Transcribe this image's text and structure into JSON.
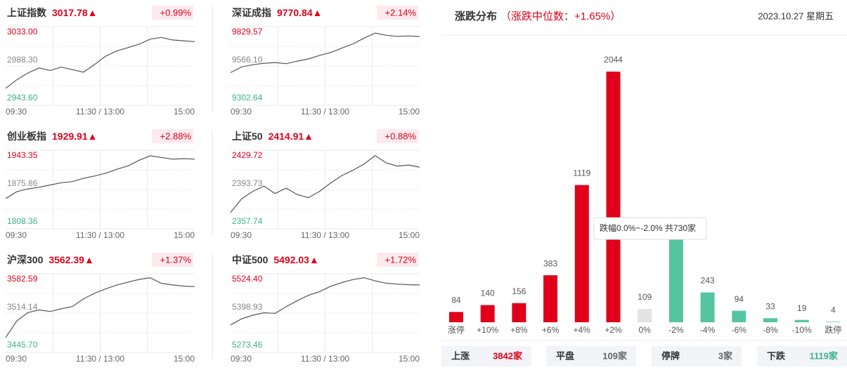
{
  "time_labels": [
    "09:30",
    "11:30 / 13:00",
    "15:00"
  ],
  "indices": [
    {
      "name": "上证指数",
      "price": "3017.78▲",
      "change": "+0.99%",
      "ylim": [
        2943.6,
        3033
      ],
      "yticks": [
        {
          "value": 2943.6,
          "label": "2943.60"
        },
        {
          "value": 2988.3,
          "label": "2988.30"
        },
        {
          "value": 3033,
          "label": "3033.00"
        }
      ],
      "values": [
        2962,
        2972,
        2980,
        2986,
        2983,
        2987,
        2984,
        2981,
        2990,
        3000,
        3006,
        3010,
        3014,
        3020,
        3022,
        3019,
        3018,
        3017
      ]
    },
    {
      "name": "深证成指",
      "price": "9770.84▲",
      "change": "+2.14%",
      "ylim": [
        9302.64,
        9829.57
      ],
      "yticks": [
        {
          "value": 9302.64,
          "label": "9302.64"
        },
        {
          "value": 9566.1,
          "label": "9566.10"
        },
        {
          "value": 9829.57,
          "label": "9829.57"
        }
      ],
      "values": [
        9520,
        9560,
        9575,
        9585,
        9590,
        9582,
        9600,
        9615,
        9640,
        9660,
        9690,
        9720,
        9760,
        9795,
        9780,
        9772,
        9775,
        9771
      ]
    },
    {
      "name": "创业板指",
      "price": "1929.91▲",
      "change": "+2.88%",
      "ylim": [
        1808.36,
        1943.35
      ],
      "yticks": [
        {
          "value": 1808.36,
          "label": "1808.36"
        },
        {
          "value": 1875.86,
          "label": "1875.86"
        },
        {
          "value": 1943.35,
          "label": "1943.35"
        }
      ],
      "values": [
        1860,
        1872,
        1877,
        1880,
        1884,
        1888,
        1890,
        1896,
        1900,
        1905,
        1912,
        1918,
        1928,
        1936,
        1933,
        1930,
        1931,
        1930
      ]
    },
    {
      "name": "上证50",
      "price": "2414.91▲",
      "change": "+0.88%",
      "ylim": [
        2357.74,
        2429.72
      ],
      "yticks": [
        {
          "value": 2357.74,
          "label": "2357.74"
        },
        {
          "value": 2393.73,
          "label": "2393.73"
        },
        {
          "value": 2429.72,
          "label": "2429.72"
        }
      ],
      "values": [
        2372,
        2385,
        2392,
        2397,
        2390,
        2395,
        2389,
        2386,
        2392,
        2400,
        2407,
        2412,
        2418,
        2426,
        2419,
        2416,
        2417,
        2415
      ]
    },
    {
      "name": "沪深300",
      "price": "3562.39▲",
      "change": "+1.37%",
      "ylim": [
        3445.7,
        3582.59
      ],
      "yticks": [
        {
          "value": 3445.7,
          "label": "3445.70"
        },
        {
          "value": 3514.14,
          "label": "3514.14"
        },
        {
          "value": 3582.59,
          "label": "3582.59"
        }
      ],
      "values": [
        3470,
        3500,
        3515,
        3520,
        3517,
        3522,
        3526,
        3540,
        3550,
        3558,
        3565,
        3570,
        3575,
        3578,
        3568,
        3565,
        3563,
        3562
      ]
    },
    {
      "name": "中证500",
      "price": "5492.03▲",
      "change": "+1.72%",
      "ylim": [
        5273.46,
        5524.4
      ],
      "yticks": [
        {
          "value": 5273.46,
          "label": "5273.46"
        },
        {
          "value": 5398.93,
          "label": "5398.93"
        },
        {
          "value": 5524.4,
          "label": "5524.40"
        }
      ],
      "values": [
        5360,
        5380,
        5392,
        5400,
        5398,
        5420,
        5440,
        5458,
        5470,
        5488,
        5500,
        5510,
        5516,
        5506,
        5498,
        5495,
        5493,
        5492
      ]
    }
  ],
  "chart_data": {
    "type": "bar",
    "title": "涨跌分布",
    "subtitle": "（涨跌中位数：+1.65%）",
    "date": "2023.10.27 星期五",
    "categories": [
      "涨停",
      "+10%",
      "+8%",
      "+6%",
      "+4%",
      "+2%",
      "0%",
      "-2%",
      "-4%",
      "-6%",
      "-8%",
      "-10%",
      "跌停"
    ],
    "values": [
      84,
      140,
      156,
      383,
      1119,
      2044,
      109,
      730,
      243,
      94,
      33,
      19,
      4
    ],
    "colors": [
      "#e0001a",
      "#e0001a",
      "#e0001a",
      "#e0001a",
      "#e0001a",
      "#e0001a",
      "#e3e3e3",
      "#55c4a0",
      "#55c4a0",
      "#55c4a0",
      "#55c4a0",
      "#55c4a0",
      "#55c4a0"
    ],
    "tooltip": "跌幅0.0%~-2.0% 共730家"
  },
  "summary": [
    {
      "label": "上涨",
      "value": "3842家",
      "color": "#e0001a"
    },
    {
      "label": "平盘",
      "value": "109家",
      "color": "#666666"
    },
    {
      "label": "停牌",
      "value": "3家",
      "color": "#666666"
    },
    {
      "label": "下跌",
      "value": "1119家",
      "color": "#3bb38a"
    }
  ]
}
